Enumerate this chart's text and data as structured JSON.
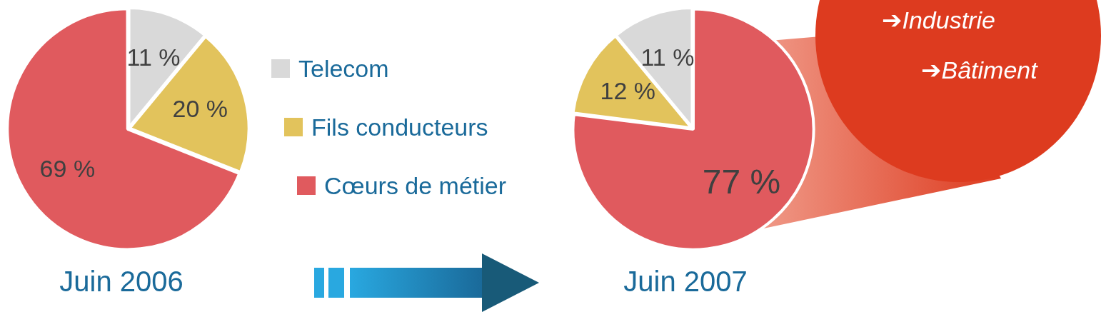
{
  "chart_data": [
    {
      "type": "pie",
      "title": "Juin 2006",
      "categories": [
        "Telecom",
        "Fils conducteurs",
        "Cœurs de métier"
      ],
      "values": [
        11,
        20,
        69
      ],
      "value_labels": [
        "11 %",
        "20 %",
        "69 %"
      ],
      "colors": [
        "#d9d9d9",
        "#e2c35c",
        "#e05a5e"
      ],
      "legend": "right"
    },
    {
      "type": "pie",
      "title": "Juin 2007",
      "categories": [
        null,
        null,
        null
      ],
      "values": [
        77,
        12,
        11
      ],
      "value_labels": [
        "77 %",
        "12 %",
        "11 %"
      ],
      "colors": [
        "#e05a5e",
        "#e2c35c",
        "#d9d9d9"
      ],
      "annotations": [
        "➔Industrie",
        "➔Bâtiment"
      ]
    }
  ]
}
